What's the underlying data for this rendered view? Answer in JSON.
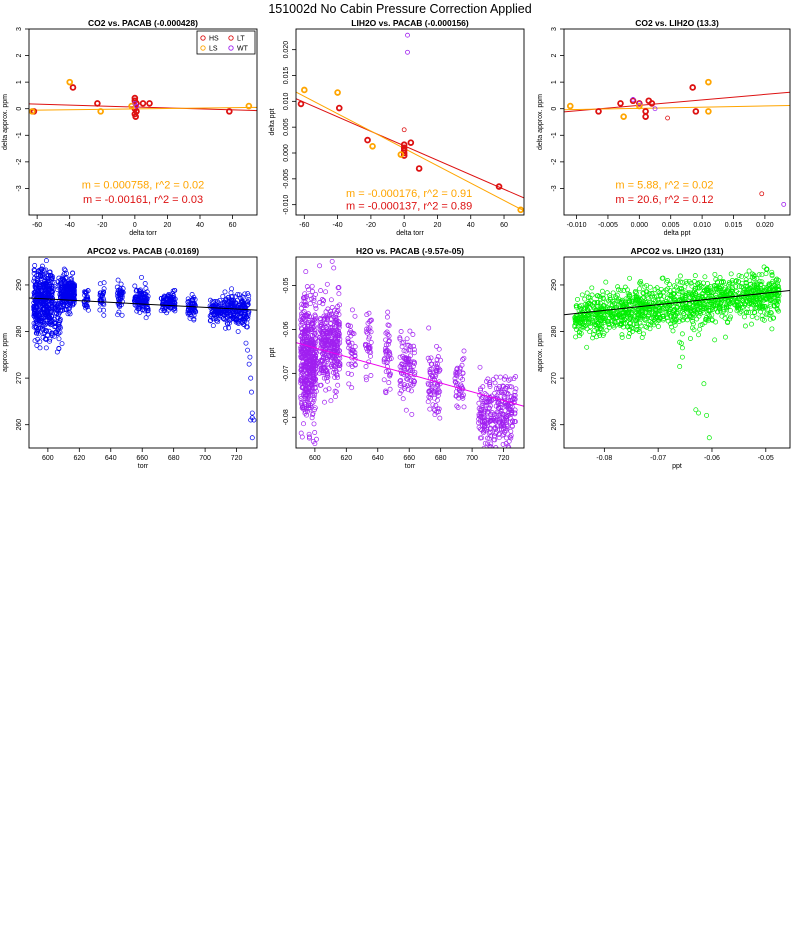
{
  "page": {
    "title": "151002d   No Cabin Pressure Correction Applied"
  },
  "colors": {
    "HS": "#dd1111",
    "LS": "#ffa500",
    "LT": "#dd1111",
    "WT": "#a020f0",
    "blue": "#0000ee",
    "purple": "#a020f0",
    "green": "#00ee00",
    "red": "#dd1111",
    "orange": "#ffa500",
    "axis": "#000000",
    "line_dark": "#000000"
  },
  "chart_data": [
    {
      "id": "p1",
      "type": "scatter",
      "title": "CO2 vs. PACAB (-0.000428)",
      "xlabel": "delta torr",
      "ylabel": "delta approx. ppm",
      "xlim": [
        -65,
        75
      ],
      "ylim": [
        -4,
        3
      ],
      "xticks": [
        -60,
        -40,
        -20,
        0,
        20,
        40,
        60
      ],
      "yticks": [
        -3,
        -2,
        -1,
        0,
        1,
        2,
        3
      ],
      "legend": {
        "position": "top-right",
        "entries": [
          {
            "label": "HS",
            "color": "#dd1111"
          },
          {
            "label": "LT",
            "color": "#dd1111"
          },
          {
            "label": "LS",
            "color": "#ffa500"
          },
          {
            "label": "WT",
            "color": "#a020f0"
          }
        ]
      },
      "series": [
        {
          "name": "red",
          "color": "#dd1111",
          "points": [
            [
              -62,
              -0.1
            ],
            [
              -38,
              0.8
            ],
            [
              -23,
              0.2
            ],
            [
              0,
              0.4
            ],
            [
              0,
              0.3
            ],
            [
              1,
              0.2
            ],
            [
              0,
              0.0
            ],
            [
              1,
              -0.1
            ],
            [
              0,
              -0.2
            ],
            [
              0.5,
              -0.3
            ],
            [
              5,
              0.2
            ],
            [
              9,
              0.2
            ],
            [
              58,
              -0.1
            ]
          ]
        },
        {
          "name": "orange",
          "color": "#ffa500",
          "points": [
            [
              -63,
              -0.1
            ],
            [
              -40,
              1.0
            ],
            [
              -21,
              -0.1
            ],
            [
              -2,
              0.1
            ],
            [
              70,
              0.1
            ]
          ]
        },
        {
          "name": "purple",
          "color": "#a020f0",
          "points": [
            [
              0,
              0.2
            ],
            [
              1,
              0.1
            ]
          ]
        }
      ],
      "fits": [
        {
          "color": "#dd1111",
          "points": [
            [
              -65,
              0.18
            ],
            [
              75,
              -0.07
            ]
          ]
        },
        {
          "color": "#ffa500",
          "points": [
            [
              -65,
              -0.06
            ],
            [
              75,
              0.05
            ]
          ]
        }
      ],
      "annotations": [
        {
          "text": "m = 0.000758, r^2 = 0.02",
          "color": "#ffa500",
          "x": 5,
          "y": -3.0
        },
        {
          "text": "m = -0.00161, r^2 = 0.03",
          "color": "#dd1111",
          "x": 5,
          "y": -3.55
        }
      ]
    },
    {
      "id": "p2",
      "type": "scatter",
      "title": "LIH2O vs. PACAB (-0.000156)",
      "xlabel": "delta torr",
      "ylabel": "delta ppt",
      "xlim": [
        -65,
        72
      ],
      "ylim": [
        -0.012,
        0.024
      ],
      "xticks": [
        -60,
        -40,
        -20,
        0,
        20,
        40,
        60
      ],
      "yticks": [
        -0.01,
        -0.005,
        0,
        0.005,
        0.01,
        0.015,
        0.02
      ],
      "ytick_labels": [
        "-0.010",
        "-0.005",
        "0.000",
        "0.005",
        "0.010",
        "0.015",
        "0.020"
      ],
      "series": [
        {
          "name": "red",
          "color": "#dd1111",
          "points": [
            [
              -62,
              0.0095
            ],
            [
              -39,
              0.0087
            ],
            [
              -22,
              0.0025
            ],
            [
              0,
              0.0016
            ],
            [
              0,
              0.001
            ],
            [
              0,
              0.0005
            ],
            [
              0,
              0.0
            ],
            [
              0,
              -0.0005
            ],
            [
              4,
              0.002
            ],
            [
              9,
              -0.003
            ],
            [
              57,
              -0.0065
            ]
          ]
        },
        {
          "name": "orange",
          "color": "#ffa500",
          "points": [
            [
              -60,
              0.0122
            ],
            [
              -40,
              0.0117
            ],
            [
              -19,
              0.0013
            ],
            [
              -2,
              -0.0003
            ],
            [
              70,
              -0.011
            ]
          ]
        },
        {
          "name": "purple",
          "color": "#a020f0",
          "points": [
            [
              2,
              0.0228
            ],
            [
              2,
              0.0195
            ]
          ]
        },
        {
          "name": "red_hollow",
          "color": "#dd1111",
          "points": [
            [
              0,
              0.0045
            ]
          ]
        }
      ],
      "fits": [
        {
          "color": "#dd1111",
          "points": [
            [
              -65,
              0.0105
            ],
            [
              72,
              -0.0087
            ]
          ]
        },
        {
          "color": "#ffa500",
          "points": [
            [
              -65,
              0.0118
            ],
            [
              72,
              -0.0112
            ]
          ]
        }
      ],
      "annotations": [
        {
          "text": "m = -0.000176, r^2 = 0.91",
          "color": "#ffa500",
          "x": 3,
          "y": -0.0085
        },
        {
          "text": "m = -0.000137, r^2 = 0.89",
          "color": "#dd1111",
          "x": 3,
          "y": -0.0109
        }
      ]
    },
    {
      "id": "p3",
      "type": "scatter",
      "title": "CO2 vs. LIH2O (13.3)",
      "xlabel": "delta ppt",
      "ylabel": "delta approx. ppm",
      "xlim": [
        -0.012,
        0.024
      ],
      "ylim": [
        -4,
        3
      ],
      "xticks": [
        -0.01,
        -0.005,
        0,
        0.005,
        0.01,
        0.015,
        0.02
      ],
      "xtick_labels": [
        "-0.010",
        "-0.005",
        "0.000",
        "0.005",
        "0.010",
        "0.015",
        "0.020"
      ],
      "yticks": [
        -3,
        -2,
        -1,
        0,
        1,
        2,
        3
      ],
      "series": [
        {
          "name": "red",
          "color": "#dd1111",
          "points": [
            [
              -0.0065,
              -0.1
            ],
            [
              -0.003,
              0.2
            ],
            [
              -0.001,
              0.3
            ],
            [
              0,
              0.2
            ],
            [
              0.001,
              -0.1
            ],
            [
              0.001,
              -0.3
            ],
            [
              0.0015,
              0.3
            ],
            [
              0.002,
              0.2
            ],
            [
              0.0085,
              0.8
            ],
            [
              0.009,
              -0.1
            ]
          ]
        },
        {
          "name": "orange",
          "color": "#ffa500",
          "points": [
            [
              -0.011,
              0.1
            ],
            [
              -0.0025,
              -0.3
            ],
            [
              0.0,
              0.1
            ],
            [
              0.011,
              1.0
            ],
            [
              0.011,
              -0.1
            ]
          ]
        },
        {
          "name": "purple",
          "color": "#a020f0",
          "points": [
            [
              -0.001,
              0.35
            ],
            [
              0.0,
              0.2
            ],
            [
              0.0025,
              0.0
            ],
            [
              0.023,
              -3.6
            ]
          ]
        },
        {
          "name": "red_small",
          "color": "#dd1111",
          "points": [
            [
              0.0045,
              -0.35
            ],
            [
              0.0195,
              -3.2
            ]
          ]
        }
      ],
      "fits": [
        {
          "color": "#dd1111",
          "points": [
            [
              -0.012,
              -0.12
            ],
            [
              0.024,
              0.62
            ]
          ]
        },
        {
          "color": "#ffa500",
          "points": [
            [
              -0.012,
              -0.04
            ],
            [
              0.024,
              0.12
            ]
          ]
        }
      ],
      "annotations": [
        {
          "text": "m = 5.88, r^2 = 0.02",
          "color": "#ffa500",
          "x": 0.004,
          "y": -3.0
        },
        {
          "text": "m = 20.6, r^2 = 0.12",
          "color": "#dd1111",
          "x": 0.004,
          "y": -3.55
        }
      ]
    },
    {
      "id": "p4",
      "type": "scatter",
      "title": "APCO2 vs. PACAB (-0.0169)",
      "xlabel": "torr",
      "ylabel": "approx. ppm",
      "xlim": [
        588,
        733
      ],
      "ylim": [
        255,
        296
      ],
      "xticks": [
        600,
        620,
        640,
        660,
        680,
        700,
        720
      ],
      "yticks": [
        260,
        270,
        280,
        290
      ],
      "color": "#0000ee",
      "clusters": [
        {
          "x": [
            591,
            603
          ],
          "ymean": 286.5,
          "ysd": 3.3,
          "n": 420
        },
        {
          "x": [
            604,
            608
          ],
          "ymean": 283.5,
          "ysd": 3.6,
          "n": 60
        },
        {
          "x": [
            608,
            617
          ],
          "ymean": 288.5,
          "ysd": 1.8,
          "n": 230
        },
        {
          "x": [
            623,
            626
          ],
          "ymean": 287.0,
          "ysd": 1.5,
          "n": 28
        },
        {
          "x": [
            633,
            636
          ],
          "ymean": 287.5,
          "ysd": 1.5,
          "n": 30
        },
        {
          "x": [
            644,
            648
          ],
          "ymean": 287.5,
          "ysd": 1.5,
          "n": 45
        },
        {
          "x": [
            655,
            664
          ],
          "ymean": 286.8,
          "ysd": 1.4,
          "n": 110
        },
        {
          "x": [
            672,
            681
          ],
          "ymean": 286.5,
          "ysd": 1.1,
          "n": 100
        },
        {
          "x": [
            689,
            694
          ],
          "ymean": 285.5,
          "ysd": 1.2,
          "n": 55
        },
        {
          "x": [
            703,
            710
          ],
          "ymean": 284.6,
          "ysd": 1.1,
          "n": 80
        },
        {
          "x": [
            711,
            728
          ],
          "ymean": 284.6,
          "ysd": 1.6,
          "n": 210
        }
      ],
      "extra_points": [
        [
          727,
          276
        ],
        [
          728,
          273
        ],
        [
          728.5,
          274.5
        ],
        [
          729,
          270
        ],
        [
          729.5,
          267
        ],
        [
          730,
          262.5
        ],
        [
          730,
          261.5
        ],
        [
          729,
          261
        ],
        [
          731,
          261
        ],
        [
          730,
          257.2
        ],
        [
          726,
          277.5
        ],
        [
          593,
          277
        ],
        [
          595,
          276.5
        ],
        [
          607,
          276.3
        ],
        [
          606,
          275.6
        ],
        [
          609,
          277.4
        ],
        [
          599,
          278.3
        ],
        [
          605,
          279.8
        ],
        [
          721,
          280
        ],
        [
          713,
          280.7
        ]
      ],
      "fits": [
        {
          "color": "#000000",
          "points": [
            [
              588,
              287.2
            ],
            [
              733,
              284.6
            ]
          ]
        }
      ]
    },
    {
      "id": "p5",
      "type": "scatter",
      "title": "H2O vs. PACAB (-9.57e-05)",
      "xlabel": "torr",
      "ylabel": "ppt",
      "xlim": [
        588,
        733
      ],
      "ylim": [
        -0.087,
        -0.0435
      ],
      "xticks": [
        600,
        620,
        640,
        660,
        680,
        700,
        720
      ],
      "yticks": [
        -0.08,
        -0.07,
        -0.06,
        -0.05
      ],
      "ytick_labels": [
        "-0.08",
        "-0.07",
        "-0.06",
        "-0.05"
      ],
      "color": "#a020f0",
      "clusters": [
        {
          "x": [
            591,
            601
          ],
          "ymean": -0.0665,
          "ysd": 0.0065,
          "n": 480
        },
        {
          "x": [
            603,
            616
          ],
          "ymean": -0.063,
          "ysd": 0.0045,
          "n": 320
        },
        {
          "x": [
            621,
            626
          ],
          "ymean": -0.0655,
          "ysd": 0.004,
          "n": 40
        },
        {
          "x": [
            632,
            636
          ],
          "ymean": -0.0635,
          "ysd": 0.004,
          "n": 35
        },
        {
          "x": [
            644,
            649
          ],
          "ymean": -0.0655,
          "ysd": 0.0045,
          "n": 45
        },
        {
          "x": [
            654,
            664
          ],
          "ymean": -0.0685,
          "ysd": 0.004,
          "n": 90
        },
        {
          "x": [
            672,
            680
          ],
          "ymean": -0.072,
          "ysd": 0.004,
          "n": 80
        },
        {
          "x": [
            689,
            695
          ],
          "ymean": -0.0725,
          "ysd": 0.003,
          "n": 45
        },
        {
          "x": [
            704,
            728
          ],
          "ymean": -0.079,
          "ysd": 0.004,
          "n": 300
        }
      ],
      "extra_points": [
        [
          600,
          -0.086
        ],
        [
          599,
          -0.0855
        ],
        [
          601,
          -0.085
        ],
        [
          592,
          -0.0845
        ],
        [
          611,
          -0.0445
        ],
        [
          612,
          -0.046
        ],
        [
          603,
          -0.0455
        ]
      ],
      "fits": [
        {
          "color": "#ee00ee",
          "points": [
            [
              588,
              -0.063
            ],
            [
              733,
              -0.0775
            ]
          ]
        }
      ]
    },
    {
      "id": "p6",
      "type": "scatter",
      "title": "APCO2 vs. LIH2O (131)",
      "xlabel": "ppt",
      "ylabel": "approx. ppm",
      "xlim": [
        -0.0875,
        -0.0455
      ],
      "ylim": [
        255,
        296
      ],
      "xticks": [
        -0.08,
        -0.07,
        -0.06,
        -0.05
      ],
      "xtick_labels": [
        "-0.08",
        "-0.07",
        "-0.06",
        "-0.05"
      ],
      "yticks": [
        260,
        270,
        280,
        290
      ],
      "color": "#00ee00",
      "clusters": [
        {
          "x": [
            -0.0855,
            -0.0475
          ],
          "ymean": 285.7,
          "ysd": 2.4,
          "n": 1300,
          "slope": 131,
          "xcenter": -0.066
        }
      ],
      "extra_points": [
        [
          -0.0625,
          279.3
        ],
        [
          -0.064,
          278.5
        ],
        [
          -0.0655,
          279.5
        ],
        [
          -0.066,
          277.7
        ],
        [
          -0.0655,
          276.5
        ],
        [
          -0.0595,
          278.2
        ],
        [
          -0.0575,
          278.8
        ],
        [
          -0.066,
          272.5
        ],
        [
          -0.0655,
          274.5
        ],
        [
          -0.0615,
          268.8
        ],
        [
          -0.063,
          263.2
        ],
        [
          -0.0625,
          262.5
        ],
        [
          -0.061,
          262
        ],
        [
          -0.0605,
          257.2
        ],
        [
          -0.0585,
          291.6
        ],
        [
          -0.0545,
          291.8
        ]
      ],
      "fits": [
        {
          "color": "#000000",
          "points": [
            [
              -0.0875,
              283.6
            ],
            [
              -0.0455,
              288.8
            ]
          ]
        }
      ]
    }
  ]
}
